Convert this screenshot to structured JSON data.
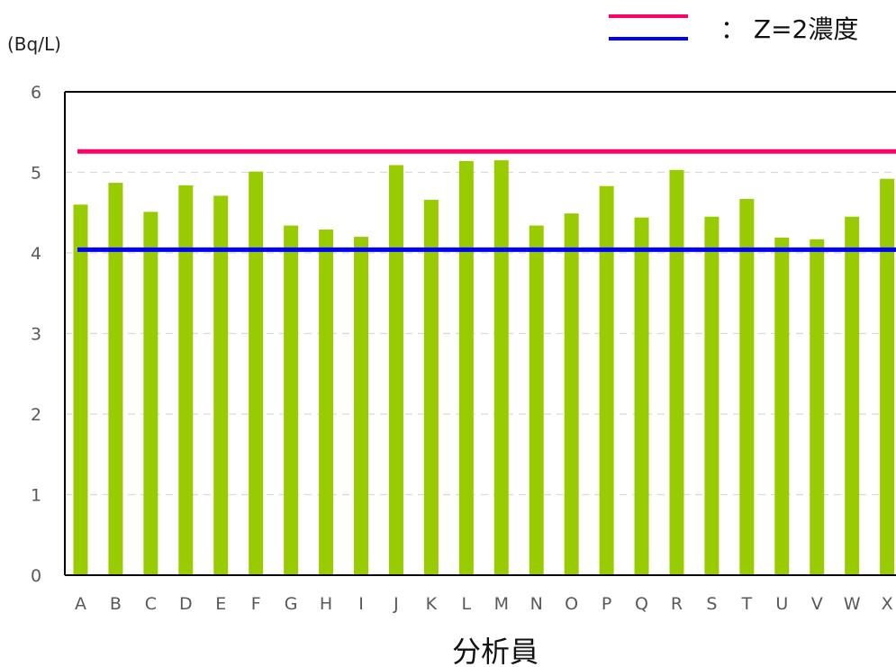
{
  "chart_data": {
    "type": "bar",
    "ylabel": "(Bq/L)",
    "xlabel": "分析員",
    "categories": [
      "A",
      "B",
      "C",
      "D",
      "E",
      "F",
      "G",
      "H",
      "I",
      "J",
      "K",
      "L",
      "M",
      "N",
      "O",
      "P",
      "Q",
      "R",
      "S",
      "T",
      "U",
      "V",
      "W",
      "X"
    ],
    "values": [
      4.6,
      4.87,
      4.51,
      4.84,
      4.71,
      5.01,
      4.34,
      4.29,
      4.2,
      5.09,
      4.66,
      5.14,
      5.15,
      4.34,
      4.49,
      4.83,
      4.44,
      5.03,
      4.45,
      4.67,
      4.19,
      4.17,
      4.45,
      4.92
    ],
    "ylim": [
      0,
      6
    ],
    "yticks": [
      0,
      1,
      2,
      3,
      4,
      5,
      6
    ],
    "grid": true,
    "bar_color": "#99cc00",
    "reference_lines": [
      {
        "value": 5.26,
        "color": "#ff0066"
      },
      {
        "value": 4.04,
        "color": "#0000ff"
      }
    ],
    "legend": {
      "text": "： Z=2濃度",
      "position": "top-right"
    }
  }
}
